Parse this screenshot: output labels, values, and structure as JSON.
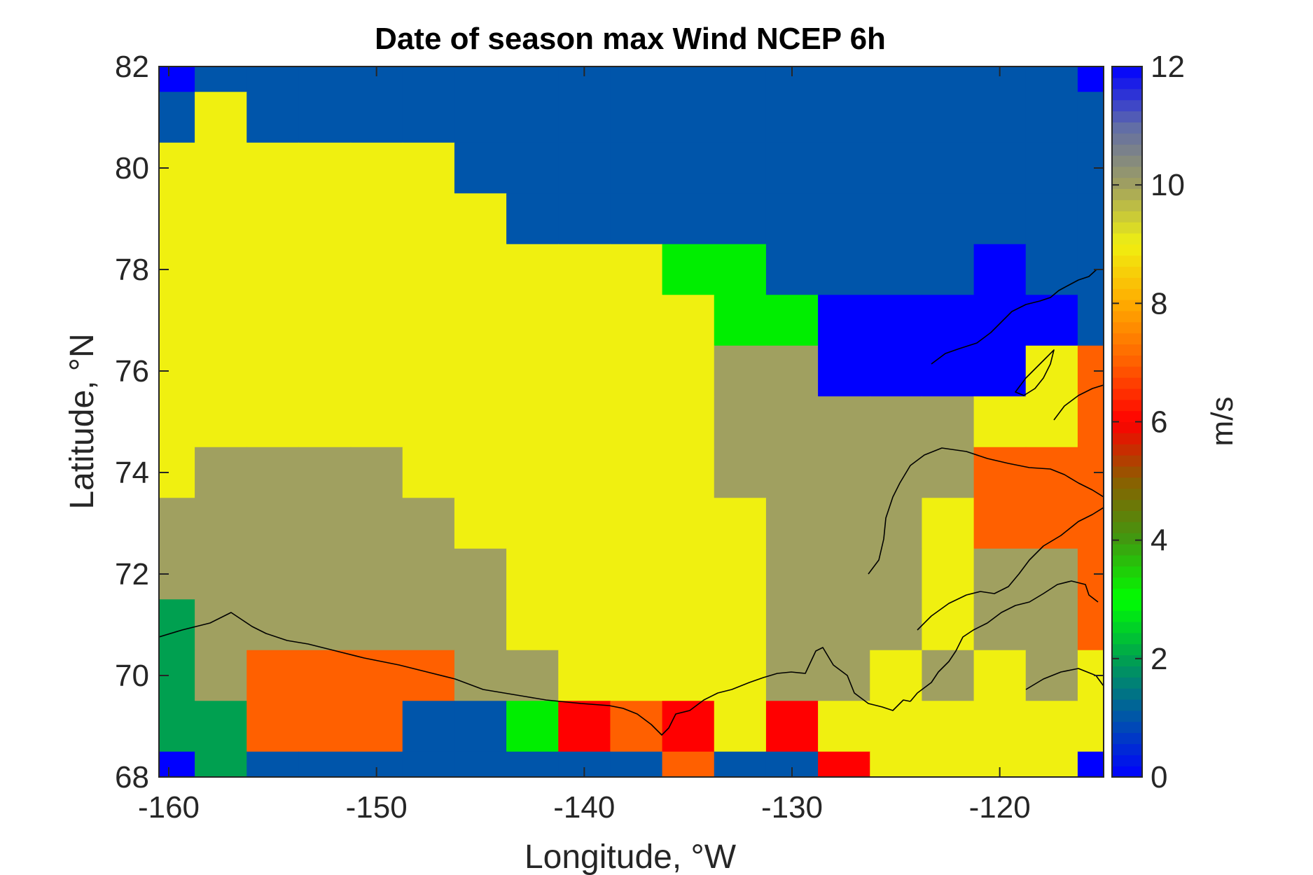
{
  "chart_data": {
    "type": "heatmap",
    "title": "Date of season max Wind NCEP 6h",
    "xlabel": "Longitude, °W",
    "ylabel": "Latitude, °N",
    "xlim": [
      -160,
      -115
    ],
    "ylim": [
      68,
      82
    ],
    "xticks": [
      -160,
      -150,
      -140,
      -130,
      -120
    ],
    "yticks": [
      68,
      70,
      72,
      74,
      76,
      78,
      80,
      82
    ],
    "grid": false,
    "colorbar": {
      "label": "m/s",
      "range": [
        0,
        12
      ],
      "ticks": [
        0,
        2,
        4,
        6,
        8,
        10,
        12
      ],
      "stops": [
        {
          "v": 0,
          "color": "#0000ff"
        },
        {
          "v": 1,
          "color": "#0055aa"
        },
        {
          "v": 2,
          "color": "#00a050"
        },
        {
          "v": 3,
          "color": "#00ff00"
        },
        {
          "v": 4,
          "color": "#409a10"
        },
        {
          "v": 5,
          "color": "#8a6000"
        },
        {
          "v": 6,
          "color": "#ff0000"
        },
        {
          "v": 7,
          "color": "#ff6000"
        },
        {
          "v": 8,
          "color": "#ffaa00"
        },
        {
          "v": 9,
          "color": "#f0f010"
        },
        {
          "v": 10,
          "color": "#a0a060"
        },
        {
          "v": 11,
          "color": "#606ca8"
        },
        {
          "v": 12,
          "color": "#0000ff"
        }
      ]
    },
    "cell": {
      "dlon": 2.5,
      "dlat": 1
    },
    "lon_centers": [
      -160,
      -157.5,
      -155,
      -152.5,
      -150,
      -147.5,
      -145,
      -142.5,
      -140,
      -137.5,
      -135,
      -132.5,
      -130,
      -127.5,
      -125,
      -122.5,
      -120,
      -117.5,
      -115
    ],
    "lat_centers": [
      82,
      81,
      80,
      79,
      78,
      77,
      76,
      75,
      74,
      73,
      72,
      71,
      70,
      69,
      68
    ],
    "palette": {
      "A": {
        "value": 0.0,
        "color": "#0000ff"
      },
      "B": {
        "value": 0.9,
        "color": "#0055aa"
      },
      "G": {
        "value": 2.0,
        "color": "#00a050"
      },
      "L": {
        "value": 3.0,
        "color": "#00ee00"
      },
      "R": {
        "value": 6.0,
        "color": "#ff0000"
      },
      "O": {
        "value": 7.0,
        "color": "#ff6000"
      },
      "Y": {
        "value": 9.0,
        "color": "#f0f010"
      },
      "K": {
        "value": 10.0,
        "color": "#a0a060"
      }
    },
    "grid_rows": [
      "ABBBBBBBBBBBBBBBBBA",
      "BYBBBBBBBBBBBBBBBBB",
      "YYYYYYBBBBBBBBBBBBB",
      "YYYYYYYBBBBBBBBBBBB",
      "YYYYYYYYYYLLBBBBABB",
      "YYYYYYYYYYYLLAAAAAB",
      "YYYYYYYYYYYKKAAAAYO",
      "YYYYYYYYYYYKKKKKYYO",
      "YKKKKYYYYYYKKKKKOOO",
      "KKKKKKYYYYYYKKKYOOO",
      "KKKKKKKYYYYYKKKYKKO",
      "GKKKKKKYYYYYKKKYKKO",
      "GKOOOOKKYYYYKKYKYKY",
      "GGOOOBBLRORYRYYYYYY",
      "AGBBBBBBBBOBBRYYYYA"
    ]
  }
}
